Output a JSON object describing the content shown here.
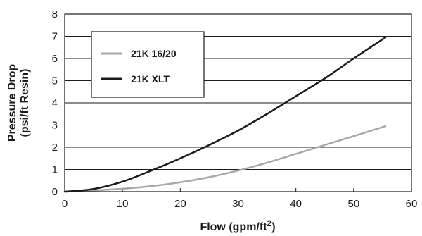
{
  "chart_data": {
    "type": "line",
    "title": "",
    "xlabel": "Flow (gpm/ft",
    "xlabel_superscript": "2",
    "xlabel_suffix": ")",
    "ylabel_line1": "Pressure Drop",
    "ylabel_line2": "(psi/ft Resin)",
    "xlim": [
      0,
      60
    ],
    "ylim": [
      0,
      8
    ],
    "x_ticks": [
      "0",
      "10",
      "20",
      "30",
      "40",
      "50",
      "60"
    ],
    "y_ticks": [
      "0",
      "1",
      "2",
      "3",
      "4",
      "5",
      "6",
      "7",
      "8"
    ],
    "grid": "horizontal",
    "legend_position": "upper-left",
    "series": [
      {
        "name": "21K 16/20",
        "color": "#a8a8a8",
        "x": [
          0,
          5,
          10,
          15,
          20,
          25,
          30,
          35,
          40,
          45,
          50,
          55.5
        ],
        "y": [
          0,
          0.05,
          0.13,
          0.25,
          0.42,
          0.65,
          0.95,
          1.3,
          1.7,
          2.1,
          2.5,
          2.95
        ]
      },
      {
        "name": "21K XLT",
        "color": "#1a1a1a",
        "x": [
          0,
          5,
          10,
          15,
          20,
          25,
          30,
          35,
          40,
          45,
          50,
          55.5
        ],
        "y": [
          0,
          0.12,
          0.45,
          0.95,
          1.5,
          2.1,
          2.75,
          3.5,
          4.3,
          5.1,
          6.0,
          6.95
        ]
      }
    ]
  }
}
